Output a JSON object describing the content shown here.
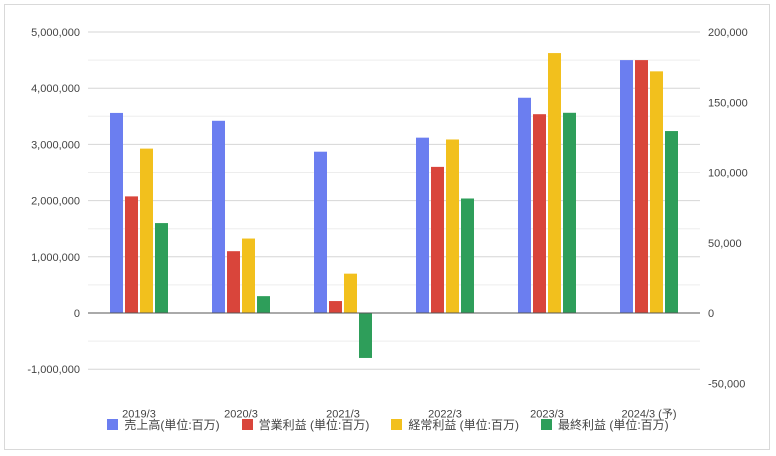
{
  "chart_data": {
    "type": "bar",
    "categories": [
      "2019/3",
      "2020/3",
      "2021/3",
      "2022/3",
      "2023/3",
      "2024/3 (予)"
    ],
    "series": [
      {
        "name": "売上高(単位:百万)",
        "axis": "left",
        "color": "#6b7ef0",
        "values": [
          3560000,
          3420000,
          2870000,
          3120000,
          3830000,
          4500000
        ]
      },
      {
        "name": "営業利益 (単位:百万)",
        "axis": "right",
        "color": "#d9453b",
        "values": [
          83000,
          44000,
          8500,
          104000,
          141500,
          180000
        ]
      },
      {
        "name": "経常利益 (単位:百万)",
        "axis": "right",
        "color": "#f2c01d",
        "values": [
          117000,
          53000,
          28000,
          123500,
          185000,
          172000
        ]
      },
      {
        "name": "最終利益 (単位:百万)",
        "axis": "right",
        "color": "#2e9e5a",
        "values": [
          64000,
          12000,
          -32000,
          81500,
          142500,
          129500
        ]
      }
    ],
    "y_left": {
      "ylim": [
        -1500000,
        5000000
      ],
      "ticks": [
        {
          "v": 5000000,
          "label": "5,000,000"
        },
        {
          "v": 4000000,
          "label": "4,000,000"
        },
        {
          "v": 3000000,
          "label": "3,000,000"
        },
        {
          "v": 2000000,
          "label": "2,000,000"
        },
        {
          "v": 1000000,
          "label": "1,000,000"
        },
        {
          "v": 0,
          "label": "0"
        },
        {
          "v": -1000000,
          "label": "-1,000,000"
        }
      ],
      "minor_ticks": [
        4500000,
        3500000,
        2500000,
        1500000,
        500000,
        -500000
      ]
    },
    "y_right": {
      "ylim": [
        -50000,
        200000
      ],
      "ticks": [
        {
          "v": 200000,
          "label": "200,000"
        },
        {
          "v": 150000,
          "label": "150,000"
        },
        {
          "v": 100000,
          "label": "100,000"
        },
        {
          "v": 50000,
          "label": "50,000"
        },
        {
          "v": 0,
          "label": "0"
        },
        {
          "v": -50000,
          "label": "-50,000"
        }
      ]
    },
    "grid": true,
    "legend_position": "bottom",
    "title": "",
    "xlabel": "",
    "ylabel": ""
  }
}
